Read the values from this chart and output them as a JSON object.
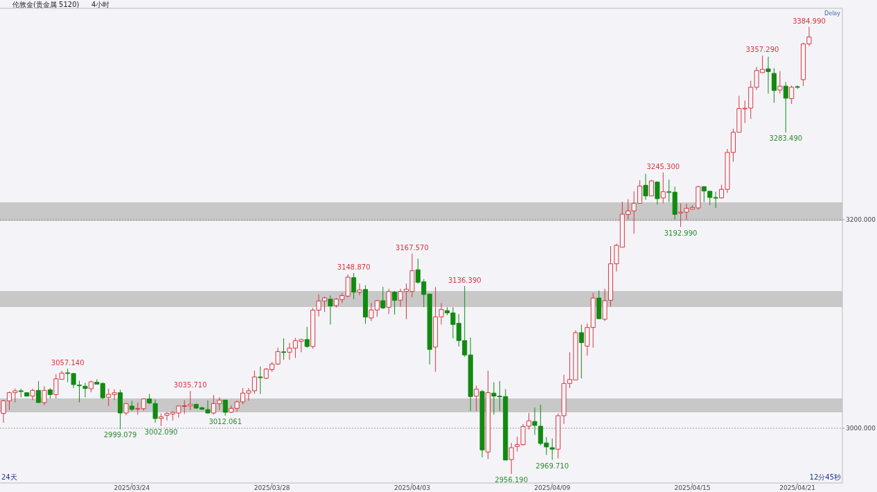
{
  "chart_data": {
    "type": "candlestick",
    "title": "伦敦金(贵金属 5120)",
    "subtitle": "4小时",
    "categories": [
      null,
      null,
      null,
      null,
      null,
      null,
      null,
      null,
      null,
      null,
      null,
      null,
      null,
      null,
      null,
      null,
      null,
      null,
      null,
      null,
      null,
      null,
      "2025/03/24",
      null,
      null,
      null,
      null,
      null,
      null,
      null,
      null,
      null,
      null,
      null,
      null,
      null,
      null,
      null,
      null,
      null,
      null,
      null,
      null,
      null,
      null,
      null,
      "2025/03/28",
      null,
      null,
      null,
      null,
      null,
      null,
      null,
      null,
      null,
      null,
      null,
      null,
      null,
      null,
      null,
      null,
      null,
      null,
      null,
      null,
      null,
      null,
      null,
      "2025/04/03",
      null,
      null,
      null,
      null,
      null,
      null,
      null,
      null,
      null,
      null,
      null,
      null,
      null,
      null,
      null,
      null,
      null,
      null,
      null,
      null,
      null,
      null,
      null,
      "2025/04/09",
      null,
      null,
      null,
      null,
      null,
      null,
      null,
      null,
      null,
      null,
      null,
      null,
      null,
      null,
      null,
      null,
      null,
      null,
      null,
      null,
      null,
      null,
      null,
      "2025/04/15",
      null,
      null,
      null,
      null,
      null,
      null,
      null,
      null,
      null,
      null,
      null,
      null,
      null,
      null,
      null,
      null,
      null,
      "2025/04/21",
      null,
      null
    ],
    "ohlc": [
      [
        3014.2,
        3027,
        3005.3,
        3026.3
      ],
      [
        3026.3,
        3035.2,
        3017.5,
        3034.1
      ],
      [
        3034.1,
        3038.1,
        3024.8,
        3035.9
      ],
      [
        3035.9,
        3037.9,
        3029.7,
        3035.2
      ],
      [
        3034.1,
        3034.5,
        3030.8,
        3030.8
      ],
      [
        3030.8,
        3038.1,
        3027,
        3036.3
      ],
      [
        3036.3,
        3045.2,
        3024.6,
        3024.6
      ],
      [
        3024.6,
        3040.3,
        3021.9,
        3036.3
      ],
      [
        3036.8,
        3038.5,
        3028.6,
        3032.3
      ],
      [
        3032.3,
        3051.8,
        3028.6,
        3047.4
      ],
      [
        3046.9,
        3055.1,
        3046.9,
        3052.9
      ],
      [
        3053.2,
        3057.14,
        3044.1,
        3052.9
      ],
      [
        3052.5,
        3052.9,
        3038.5,
        3041.9
      ],
      [
        3041.4,
        3045.6,
        3024.8,
        3040.7
      ],
      [
        3040.3,
        3043.4,
        3029.7,
        3038.1
      ],
      [
        3037.9,
        3045.6,
        3034.5,
        3044.5
      ],
      [
        3044.1,
        3046.9,
        3042.3,
        3042.3
      ],
      [
        3043,
        3044.1,
        3027.9,
        3029.2
      ],
      [
        3029.7,
        3037.9,
        3021.3,
        3032.5
      ],
      [
        3032.3,
        3037.4,
        3027,
        3034.1
      ],
      [
        3034.1,
        3037,
        2999.079,
        3014.6
      ],
      [
        3014.6,
        3024.1,
        3012.4,
        3023.7
      ],
      [
        3021.3,
        3026.3,
        3016.4,
        3018.1
      ],
      [
        3018.6,
        3024.8,
        3013,
        3019
      ],
      [
        3018.8,
        3028.6,
        3016.8,
        3028.1
      ],
      [
        3028.1,
        3033,
        3023,
        3024.2
      ],
      [
        3023.7,
        3027.5,
        3005.3,
        3009.3
      ],
      [
        3009.3,
        3014.2,
        3002.09,
        3010.9
      ],
      [
        3012.4,
        3015.3,
        3007.5,
        3014.2
      ],
      [
        3013.7,
        3016.4,
        3007.5,
        3015.3
      ],
      [
        3014.6,
        3021.9,
        3010.2,
        3021.3
      ],
      [
        3021.3,
        3026.8,
        3013.7,
        3021.6
      ],
      [
        3021.5,
        3035.71,
        3017.5,
        3023
      ],
      [
        3023,
        3023.5,
        3018.6,
        3019.3
      ],
      [
        3019.7,
        3020.8,
        3017.5,
        3018.2
      ],
      [
        3017.9,
        3026.8,
        3014.2,
        3014.6
      ],
      [
        3014.6,
        3031.9,
        3013.1,
        3023.7
      ],
      [
        3023.5,
        3029.7,
        3017.5,
        3027
      ],
      [
        3027,
        3027,
        3012.061,
        3015.3
      ],
      [
        3015.3,
        3021.9,
        3014.6,
        3019.1
      ],
      [
        3019.1,
        3026.4,
        3016,
        3025.3
      ],
      [
        3025.3,
        3038.5,
        3023,
        3033.7
      ],
      [
        3033.7,
        3038.5,
        3026.4,
        3035.9
      ],
      [
        3035.9,
        3055.2,
        3033,
        3049.2
      ],
      [
        3049.2,
        3059.2,
        3033,
        3048.5
      ],
      [
        3047.9,
        3057.8,
        3047,
        3056.7
      ],
      [
        3056.2,
        3063.6,
        3054,
        3061.6
      ],
      [
        3061.6,
        3077.3,
        3060.7,
        3073.5
      ],
      [
        3073.3,
        3086.2,
        3065.6,
        3072.7
      ],
      [
        3072.9,
        3081.8,
        3065.6,
        3076.9
      ],
      [
        3076.9,
        3086.6,
        3067.4,
        3084
      ],
      [
        3083.3,
        3085.5,
        3072.9,
        3085.1
      ],
      [
        3085.1,
        3097.3,
        3077.3,
        3078.4
      ],
      [
        3078.4,
        3115.4,
        3076.2,
        3113.2
      ],
      [
        3113.2,
        3128.3,
        3107.2,
        3122.1
      ],
      [
        3122.1,
        3126.1,
        3111.6,
        3125
      ],
      [
        3123.8,
        3127.2,
        3099.5,
        3117.2
      ],
      [
        3117.6,
        3124.9,
        3115.6,
        3123.8
      ],
      [
        3123.4,
        3129.4,
        3120.1,
        3127.2
      ],
      [
        3126.7,
        3147.5,
        3125.6,
        3144.9
      ],
      [
        3144.4,
        3148.87,
        3123.8,
        3130.5
      ],
      [
        3130.5,
        3138.7,
        3127.6,
        3132.7
      ],
      [
        3133.1,
        3137.1,
        3100.1,
        3106.6
      ],
      [
        3105.7,
        3120.1,
        3102.8,
        3113.4
      ],
      [
        3113.4,
        3123.2,
        3106.8,
        3122.3
      ],
      [
        3122.3,
        3135.6,
        3114.3,
        3115.4
      ],
      [
        3116,
        3133.8,
        3109.4,
        3131.1
      ],
      [
        3130.5,
        3131.6,
        3109,
        3122.7
      ],
      [
        3122.8,
        3133.8,
        3116.5,
        3131.1
      ],
      [
        3131.1,
        3138.7,
        3104.6,
        3133.4
      ],
      [
        3131.1,
        3167.57,
        3125.6,
        3151.1
      ],
      [
        3152,
        3162.6,
        3138.7,
        3140
      ],
      [
        3140.4,
        3143.1,
        3116.1,
        3128.3
      ],
      [
        3128.7,
        3128.7,
        3061.2,
        3075.6
      ],
      [
        3077.8,
        3135.4,
        3054.1,
        3106.8
      ],
      [
        3106.8,
        3120.1,
        3099.5,
        3113.9
      ],
      [
        3112.8,
        3116.1,
        3108.4,
        3110.6
      ],
      [
        3110.6,
        3116.1,
        3086.2,
        3099.5
      ],
      [
        3100.6,
        3109.5,
        3078.4,
        3084
      ],
      [
        3084,
        3136.39,
        3068.5,
        3070.3
      ],
      [
        3070.3,
        3086.9,
        3016.4,
        3030.4
      ],
      [
        3030.8,
        3040.8,
        3016.4,
        3037.5
      ],
      [
        3035.3,
        3036.8,
        2972.1,
        2979.2
      ],
      [
        2977.2,
        3055.2,
        2970.4,
        3034.2
      ],
      [
        3033.7,
        3044.1,
        3013.1,
        3030.8
      ],
      [
        3030.8,
        3045.2,
        3016.4,
        3030.4
      ],
      [
        3030.4,
        3037.5,
        2969.5,
        2969.5
      ],
      [
        2969.9,
        2985.9,
        2956.19,
        2981.4
      ],
      [
        2982.5,
        2992.1,
        2977.7,
        2984.3
      ],
      [
        2984.3,
        3004.2,
        2983.2,
        3001.6
      ],
      [
        3002,
        3014.7,
        2998.7,
        3007.1
      ],
      [
        3006.5,
        3019.8,
        2993.6,
        3002.7
      ],
      [
        3002,
        3022.6,
        2983.6,
        2985.4
      ],
      [
        2985.9,
        2991.6,
        2974.4,
        2982.1
      ],
      [
        2981.4,
        2990.3,
        2969.71,
        2979.9
      ],
      [
        2979.9,
        3014.2,
        2971,
        3012
      ],
      [
        3012,
        3051.4,
        3004.2,
        3043
      ],
      [
        3043,
        3072.9,
        3038.5,
        3046.7
      ],
      [
        3046.3,
        3093.9,
        3046.3,
        3091.7
      ],
      [
        3091.7,
        3099.4,
        3047.8,
        3082.1
      ],
      [
        3078.8,
        3100.5,
        3069.5,
        3096.6
      ],
      [
        3096.6,
        3129.8,
        3077.3,
        3124.9
      ],
      [
        3124.9,
        3132,
        3105,
        3105
      ],
      [
        3104.5,
        3133.8,
        3102.8,
        3122.3
      ],
      [
        3122.7,
        3174.7,
        3116.5,
        3157.7
      ],
      [
        3157.7,
        3177,
        3150.4,
        3175.4
      ],
      [
        3173.6,
        3217.3,
        3173.6,
        3205.3
      ],
      [
        3205.1,
        3219.7,
        3200.2,
        3208.4
      ],
      [
        3208.4,
        3227.2,
        3186.5,
        3215.7
      ],
      [
        3215.7,
        3237.9,
        3215.7,
        3232.3
      ],
      [
        3233,
        3244,
        3219,
        3222.8
      ],
      [
        3222.8,
        3238.3,
        3222.4,
        3237.2
      ],
      [
        3236.1,
        3236.8,
        3214.6,
        3220.1
      ],
      [
        3220.8,
        3245.3,
        3215.7,
        3226.8
      ],
      [
        3226.8,
        3238.3,
        3216.8,
        3226.4
      ],
      [
        3226.4,
        3231.7,
        3200.2,
        3205.1
      ],
      [
        3206.4,
        3215.7,
        3192.99,
        3207.3
      ],
      [
        3207.3,
        3215.3,
        3199.8,
        3210.8
      ],
      [
        3210.2,
        3213.9,
        3209.5,
        3211.7
      ],
      [
        3211.3,
        3232.3,
        3209.5,
        3231.7
      ],
      [
        3231.7,
        3232,
        3216.8,
        3227.5
      ],
      [
        3227.3,
        3227.5,
        3214,
        3221.3
      ],
      [
        3221.3,
        3226.8,
        3211.3,
        3220.9
      ],
      [
        3220.9,
        3233.5,
        3220.2,
        3229.1
      ],
      [
        3229.1,
        3267.8,
        3225.7,
        3264.5
      ],
      [
        3264.5,
        3287.3,
        3255.6,
        3283.8
      ],
      [
        3283.8,
        3318.8,
        3283.8,
        3306.6
      ],
      [
        3306.6,
        3314.3,
        3292.8,
        3306.9
      ],
      [
        3307,
        3333.2,
        3296.6,
        3327
      ],
      [
        3327,
        3346.5,
        3324.3,
        3343.1
      ],
      [
        3341,
        3357.29,
        3341,
        3344.2
      ],
      [
        3344.7,
        3356.4,
        3321,
        3342
      ],
      [
        3340.3,
        3345.3,
        3312.1,
        3323.9
      ],
      [
        3324.3,
        3342.5,
        3321,
        3328.1
      ],
      [
        3328.1,
        3332.1,
        3283.49,
        3316.5
      ],
      [
        3316.1,
        3328.7,
        3311,
        3327
      ],
      [
        3327.6,
        3328.7,
        3325.4,
        3327.2
      ],
      [
        3334.3,
        3369.7,
        3328.3,
        3368.6
      ],
      [
        3368.6,
        3384.99,
        3366.4,
        3375.3
      ]
    ],
    "ylim": [
      2947.5,
      3402.7
    ],
    "yticks": [
      {
        "value": 3000,
        "label": "3000.000"
      },
      {
        "value": 3200,
        "label": "3200.000"
      }
    ],
    "grid": "y",
    "bands": [
      {
        "axis": "y",
        "from": 3015.3,
        "to": 3028.6,
        "color": "#c8c8c8"
      },
      {
        "axis": "y",
        "from": 3116.3,
        "to": 3131.6,
        "color": "#c8c8c8"
      },
      {
        "axis": "y",
        "from": 3198.7,
        "to": 3216.6,
        "color": "#c8c8c8"
      }
    ],
    "annotations": [
      {
        "text": "3057.140",
        "y": 3057.14
      },
      {
        "text": "2999.079",
        "y": 2999.079
      },
      {
        "text": "3002.090",
        "y": 3002.09
      },
      {
        "text": "3035.710",
        "y": 3035.71
      },
      {
        "text": "3012.061",
        "y": 3012.061
      },
      {
        "text": "3148.870",
        "y": 3148.87
      },
      {
        "text": "3167.570",
        "y": 3167.57
      },
      {
        "text": "3136.390",
        "y": 3136.39
      },
      {
        "text": "2956.190",
        "y": 2956.19
      },
      {
        "text": "2969.710",
        "y": 2969.71
      },
      {
        "text": "3245.300",
        "y": 3245.3
      },
      {
        "text": "3192.990",
        "y": 3192.99
      },
      {
        "text": "3357.290",
        "y": 3357.29
      },
      {
        "text": "3283.490",
        "y": 3283.49
      },
      {
        "text": "3384.990",
        "y": 3384.99
      },
      "Delay",
      "24天",
      "12分45秒"
    ]
  }
}
